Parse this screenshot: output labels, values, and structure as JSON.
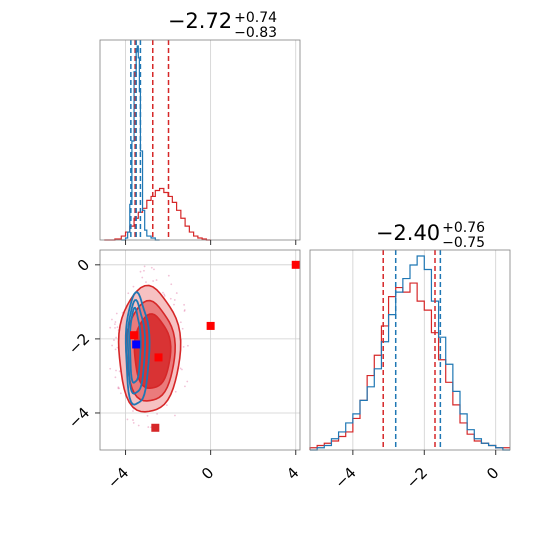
{
  "chart_data": {
    "type": "corner",
    "colors": {
      "red": "#d62728",
      "blue": "#1f77b4",
      "marker_red": "#ff0000",
      "marker_blue": "#0000ff"
    },
    "panels": [
      {
        "id": "marg-1",
        "type": "histogram",
        "title": {
          "main": "−2.72",
          "sup": "+0.74",
          "sub": "−0.83"
        },
        "xlim": [
          -5.2,
          4.2
        ],
        "x_ticks": [
          -4,
          0,
          4
        ],
        "show_tick_labels": false,
        "series": [
          {
            "name": "",
            "color": "#d62728",
            "x": [
              -5.0,
              -4.5,
              -4.2,
              -4.0,
              -3.8,
              -3.6,
              -3.4,
              -3.2,
              -3.0,
              -2.8,
              -2.6,
              -2.4,
              -2.2,
              -2.0,
              -1.8,
              -1.6,
              -1.4,
              -1.2,
              -1.0,
              -0.8,
              -0.6,
              -0.4,
              -0.2
            ],
            "y": [
              0.0,
              0.005,
              0.02,
              0.04,
              0.07,
              0.11,
              0.14,
              0.16,
              0.2,
              0.22,
              0.25,
              0.26,
              0.24,
              0.22,
              0.19,
              0.15,
              0.11,
              0.07,
              0.04,
              0.02,
              0.01,
              0.005,
              0.0
            ]
          },
          {
            "name": "",
            "color": "#1f77b4",
            "x": [
              -4.2,
              -4.0,
              -3.9,
              -3.8,
              -3.7,
              -3.6,
              -3.5,
              -3.45,
              -3.4,
              -3.35,
              -3.3,
              -3.2,
              -3.1,
              -3.0,
              -2.8,
              -2.6
            ],
            "y": [
              0.0,
              0.01,
              0.04,
              0.18,
              0.5,
              0.85,
              0.95,
              0.98,
              0.92,
              0.75,
              0.45,
              0.15,
              0.05,
              0.02,
              0.01,
              0.0
            ]
          }
        ],
        "quantile_lines": [
          {
            "x": -3.55,
            "color": "#d62728"
          },
          {
            "x": -2.72,
            "color": "#d62728"
          },
          {
            "x": -1.98,
            "color": "#d62728"
          },
          {
            "x": -3.75,
            "color": "#1f77b4"
          },
          {
            "x": -3.5,
            "color": "#1f77b4"
          },
          {
            "x": -3.3,
            "color": "#1f77b4"
          }
        ]
      },
      {
        "id": "joint",
        "type": "contour",
        "xlim": [
          -5.2,
          4.2
        ],
        "ylim": [
          -5.0,
          0.4
        ],
        "x_ticks": [
          -4,
          0,
          4
        ],
        "x_tick_labels": [
          "−4",
          "0",
          "4"
        ],
        "y_ticks": [
          0,
          -2,
          -4
        ],
        "y_tick_labels": [
          "0",
          "−2",
          "−4"
        ],
        "red_contours": [
          {
            "level": "outer",
            "cx": -2.9,
            "cy": -2.3,
            "rx": 1.45,
            "ry": 1.7
          },
          {
            "level": "middle",
            "cx": -2.85,
            "cy": -2.35,
            "rx": 1.15,
            "ry": 1.35
          },
          {
            "level": "inner",
            "cx": -2.75,
            "cy": -2.35,
            "rx": 0.85,
            "ry": 1.0
          }
        ],
        "blue_contours": [
          {
            "cx": -3.45,
            "cy": -2.3,
            "rx": 0.55,
            "ry": 1.5
          },
          {
            "cx": -3.5,
            "cy": -2.25,
            "rx": 0.4,
            "ry": 1.25
          },
          {
            "cx": -3.55,
            "cy": -2.2,
            "rx": 0.25,
            "ry": 1.0
          }
        ],
        "markers": [
          {
            "x": -3.6,
            "y": -1.9,
            "color": "#ff0000"
          },
          {
            "x": -3.5,
            "y": -2.15,
            "color": "#0000ff"
          },
          {
            "x": -2.45,
            "y": -2.5,
            "color": "#ff0000"
          },
          {
            "x": 0.0,
            "y": -1.65,
            "color": "#ff0000"
          },
          {
            "x": 4.0,
            "y": 0.0,
            "color": "#ff0000"
          },
          {
            "x": -2.6,
            "y": -4.4,
            "color": "#d62728"
          }
        ]
      },
      {
        "id": "marg-2",
        "type": "histogram",
        "title": {
          "main": "−2.40",
          "sup": "+0.76",
          "sub": "−0.75"
        },
        "xlim": [
          -5.2,
          0.4
        ],
        "x_ticks": [
          -4,
          -2,
          0
        ],
        "x_tick_labels": [
          "−4",
          "−2",
          "0"
        ],
        "series": [
          {
            "name": "",
            "color": "#d62728",
            "x": [
              -5.2,
              -5.0,
              -4.8,
              -4.6,
              -4.4,
              -4.2,
              -4.0,
              -3.8,
              -3.6,
              -3.4,
              -3.2,
              -3.0,
              -2.8,
              -2.6,
              -2.4,
              -2.2,
              -2.0,
              -1.8,
              -1.6,
              -1.4,
              -1.2,
              -1.0,
              -0.8,
              -0.6,
              -0.4,
              -0.2,
              0.0,
              0.2
            ],
            "y": [
              0.01,
              0.02,
              0.03,
              0.04,
              0.06,
              0.08,
              0.14,
              0.22,
              0.33,
              0.42,
              0.55,
              0.68,
              0.72,
              0.7,
              0.74,
              0.66,
              0.62,
              0.52,
              0.4,
              0.3,
              0.2,
              0.12,
              0.07,
              0.04,
              0.03,
              0.02,
              0.01,
              0.01
            ]
          },
          {
            "name": "",
            "color": "#1f77b4",
            "x": [
              -5.2,
              -5.0,
              -4.8,
              -4.6,
              -4.4,
              -4.2,
              -4.0,
              -3.8,
              -3.6,
              -3.4,
              -3.2,
              -3.0,
              -2.8,
              -2.6,
              -2.4,
              -2.2,
              -2.0,
              -1.8,
              -1.6,
              -1.4,
              -1.2,
              -1.0,
              -0.8,
              -0.6,
              -0.4,
              -0.2,
              0.0,
              0.2
            ],
            "y": [
              0.0,
              0.01,
              0.02,
              0.05,
              0.08,
              0.12,
              0.16,
              0.22,
              0.28,
              0.36,
              0.48,
              0.6,
              0.7,
              0.76,
              0.82,
              0.86,
              0.8,
              0.66,
              0.5,
              0.38,
              0.26,
              0.16,
              0.09,
              0.05,
              0.03,
              0.02,
              0.01,
              0.0
            ]
          }
        ],
        "quantile_lines": [
          {
            "x": -3.15,
            "color": "#d62728"
          },
          {
            "x": -1.7,
            "color": "#d62728"
          },
          {
            "x": -2.8,
            "color": "#1f77b4"
          },
          {
            "x": -1.55,
            "color": "#1f77b4"
          }
        ]
      }
    ]
  }
}
